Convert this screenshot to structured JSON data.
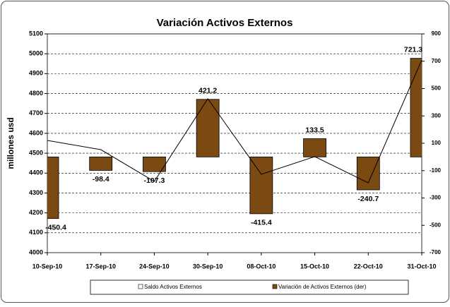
{
  "chart_data": {
    "type": "bar-line",
    "title": "Variación Activos Externos",
    "ylabel": "millones usd",
    "categories": [
      "10-Sep-10",
      "17-Sep-10",
      "24-Sep-10",
      "30-Sep-10",
      "08-Oct-10",
      "15-Oct-10",
      "22-Oct-10",
      "31-Oct-10"
    ],
    "series": [
      {
        "name": "Saldo Activos Externos",
        "type": "line",
        "color": "#000000",
        "axis": "y",
        "values": [
          4564,
          4518,
          4358,
          4774,
          4394,
          4483,
          4351,
          4969
        ]
      },
      {
        "name": "Variación de Activos Externos (der)",
        "type": "bar",
        "color": "#7b4a12",
        "axis": "y2",
        "values": [
          -450.4,
          -98.4,
          -107.3,
          421.2,
          -415.4,
          133.5,
          -240.7,
          721.3
        ]
      }
    ],
    "ylim": [
      4000,
      5100
    ],
    "yticks": [
      4000,
      4100,
      4200,
      4300,
      4400,
      4500,
      4600,
      4700,
      4800,
      4900,
      5000,
      5100
    ],
    "y2lim": [
      -700,
      900
    ],
    "y2ticks": [
      -700,
      -500,
      -300,
      -100,
      100,
      300,
      500,
      700,
      900
    ],
    "grid": true,
    "legend": "bottom"
  }
}
